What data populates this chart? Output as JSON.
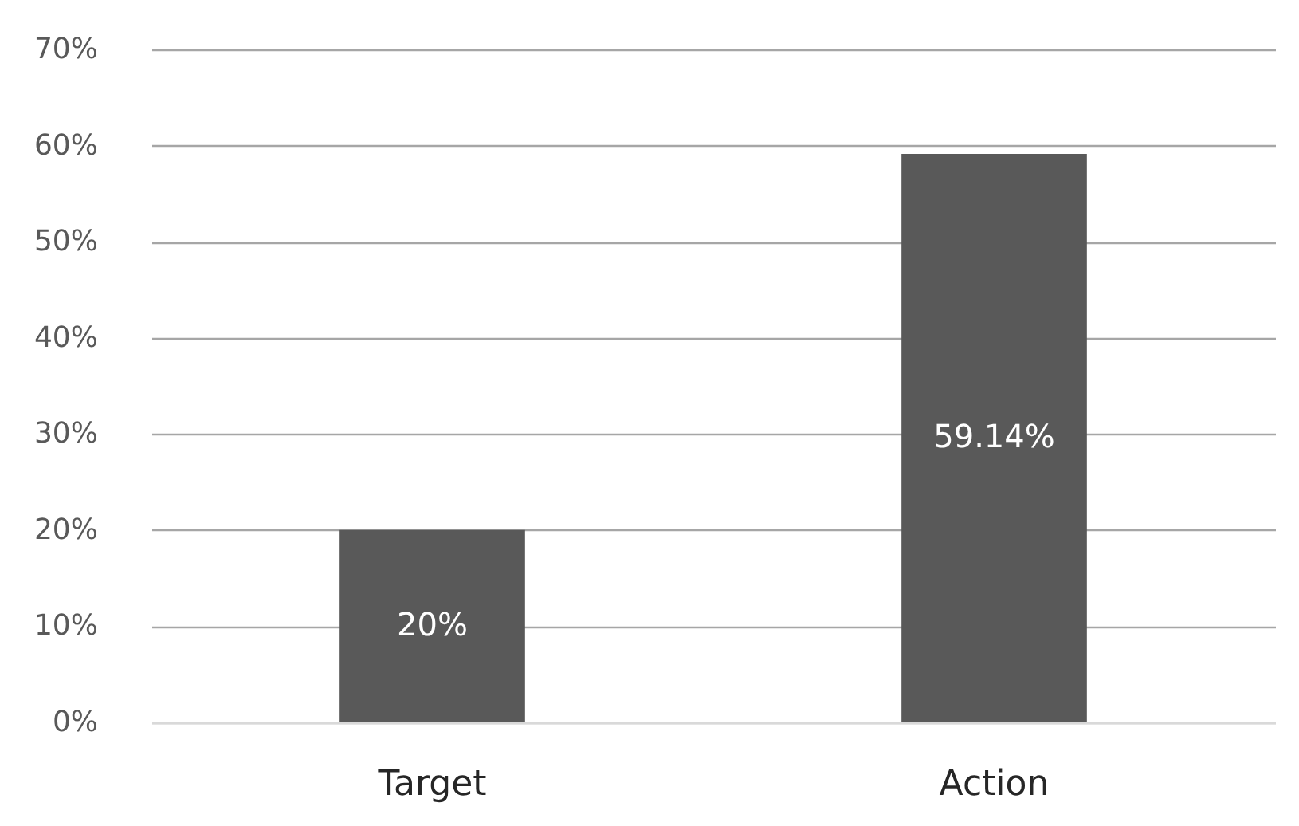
{
  "chart_data": {
    "type": "bar",
    "categories": [
      "Target",
      "Action"
    ],
    "series": [
      {
        "color": "#595959",
        "values": [
          20,
          59.14
        ]
      }
    ],
    "value_labels": [
      "20%",
      "59.14%"
    ],
    "ylim": [
      0,
      70
    ],
    "yticks": [
      {
        "value": 0,
        "label": "0%"
      },
      {
        "value": 10,
        "label": "10%"
      },
      {
        "value": 20,
        "label": "20%"
      },
      {
        "value": 30,
        "label": "30%"
      },
      {
        "value": 40,
        "label": "40%"
      },
      {
        "value": 50,
        "label": "50%"
      },
      {
        "value": 60,
        "label": "60%"
      },
      {
        "value": 70,
        "label": "70%"
      }
    ],
    "grid": "y"
  }
}
